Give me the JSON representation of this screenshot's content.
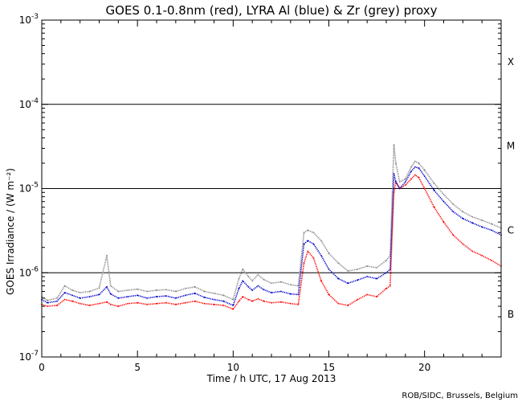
{
  "chart_data": {
    "type": "line",
    "title": "GOES 0.1-0.8nm (red), LYRA Al (blue) & Zr (grey) proxy",
    "xlabel": "Time / h UTC, 17 Aug 2013",
    "ylabel": "GOES Irradiance / (W m⁻²)",
    "xlim": [
      0,
      24
    ],
    "ylim": [
      1e-07,
      0.001
    ],
    "yscale": "log",
    "x_ticks": [
      0,
      5,
      10,
      15,
      20
    ],
    "x_tick_labels": [
      "0",
      "5",
      "10",
      "15",
      "20"
    ],
    "y_ticks": [
      {
        "value": 1e-07,
        "base": "10",
        "exp": "-7"
      },
      {
        "value": 1e-06,
        "base": "10",
        "exp": "-6"
      },
      {
        "value": 1e-05,
        "base": "10",
        "exp": "-5"
      },
      {
        "value": 0.0001,
        "base": "10",
        "exp": "-4"
      },
      {
        "value": 0.001,
        "base": "10",
        "exp": "-3"
      }
    ],
    "threshold_lines": [
      1e-06,
      1e-05,
      0.0001
    ],
    "flare_classes": [
      {
        "label": "B",
        "value": 3.2e-07
      },
      {
        "label": "C",
        "value": 3.2e-06
      },
      {
        "label": "M",
        "value": 3.2e-05
      },
      {
        "label": "X",
        "value": 0.00032
      }
    ],
    "series": [
      {
        "name": "GOES 0.1-0.8nm",
        "color": "#ff0000",
        "x": [
          0.0,
          0.3,
          0.8,
          1.2,
          1.6,
          2.0,
          2.5,
          3.0,
          3.4,
          3.6,
          4.0,
          4.5,
          5.0,
          5.5,
          6.0,
          6.5,
          7.0,
          7.5,
          8.0,
          8.5,
          9.0,
          9.5,
          10.0,
          10.3,
          10.5,
          10.8,
          11.0,
          11.3,
          11.6,
          12.0,
          12.5,
          13.0,
          13.4,
          13.7,
          13.9,
          14.2,
          14.6,
          15.0,
          15.5,
          16.0,
          16.5,
          17.0,
          17.5,
          18.0,
          18.2,
          18.4,
          18.5,
          18.7,
          19.0,
          19.3,
          19.5,
          19.7,
          20.0,
          20.5,
          21.0,
          21.5,
          22.0,
          22.5,
          23.0,
          23.5,
          24.0
        ],
        "values": [
          4.2e-07,
          4e-07,
          4.1e-07,
          4.8e-07,
          4.6e-07,
          4.3e-07,
          4.1e-07,
          4.3e-07,
          4.5e-07,
          4.2e-07,
          4e-07,
          4.3e-07,
          4.4e-07,
          4.2e-07,
          4.3e-07,
          4.4e-07,
          4.2e-07,
          4.4e-07,
          4.6e-07,
          4.3e-07,
          4.2e-07,
          4.1e-07,
          3.7e-07,
          4.6e-07,
          5.2e-07,
          4.8e-07,
          4.6e-07,
          4.9e-07,
          4.6e-07,
          4.4e-07,
          4.5e-07,
          4.3e-07,
          4.2e-07,
          1.3e-06,
          1.8e-06,
          1.5e-06,
          8e-07,
          5.5e-07,
          4.3e-07,
          4.1e-07,
          4.8e-07,
          5.5e-07,
          5.2e-07,
          6.5e-07,
          7e-07,
          9e-06,
          1.2e-05,
          1e-05,
          1.1e-05,
          1.3e-05,
          1.45e-05,
          1.35e-05,
          1e-05,
          6e-06,
          4e-06,
          2.8e-06,
          2.2e-06,
          1.8e-06,
          1.6e-06,
          1.4e-06,
          1.2e-06
        ]
      },
      {
        "name": "LYRA Al proxy",
        "color": "#0000cc",
        "x": [
          0.0,
          0.3,
          0.8,
          1.2,
          1.6,
          2.0,
          2.5,
          3.0,
          3.4,
          3.6,
          4.0,
          4.5,
          5.0,
          5.5,
          6.0,
          6.5,
          7.0,
          7.5,
          8.0,
          8.5,
          9.0,
          9.5,
          10.0,
          10.3,
          10.5,
          10.8,
          11.0,
          11.3,
          11.6,
          12.0,
          12.5,
          13.0,
          13.4,
          13.7,
          13.9,
          14.2,
          14.6,
          15.0,
          15.5,
          16.0,
          16.5,
          17.0,
          17.5,
          18.0,
          18.2,
          18.4,
          18.5,
          18.7,
          19.0,
          19.3,
          19.5,
          19.7,
          20.0,
          20.5,
          21.0,
          21.5,
          22.0,
          22.5,
          23.0,
          23.5,
          24.0
        ],
        "values": [
          4.8e-07,
          4.4e-07,
          4.6e-07,
          5.8e-07,
          5.4e-07,
          5e-07,
          5.2e-07,
          5.5e-07,
          6.8e-07,
          5.6e-07,
          5e-07,
          5.2e-07,
          5.4e-07,
          5e-07,
          5.2e-07,
          5.3e-07,
          5e-07,
          5.4e-07,
          5.7e-07,
          5.1e-07,
          4.8e-07,
          4.6e-07,
          4.1e-07,
          6.5e-07,
          8e-07,
          6.8e-07,
          6.2e-07,
          7e-07,
          6.3e-07,
          5.8e-07,
          6e-07,
          5.6e-07,
          5.5e-07,
          2.2e-06,
          2.4e-06,
          2.2e-06,
          1.6e-06,
          1.1e-06,
          8.5e-07,
          7.5e-07,
          8.2e-07,
          9e-07,
          8.5e-07,
          1e-06,
          1.1e-06,
          1.5e-05,
          1.2e-05,
          1e-05,
          1.2e-05,
          1.6e-05,
          1.8e-05,
          1.75e-05,
          1.4e-05,
          9.5e-06,
          7e-06,
          5.3e-06,
          4.4e-06,
          3.9e-06,
          3.5e-06,
          3.2e-06,
          2.8e-06
        ]
      },
      {
        "name": "LYRA Zr proxy",
        "color": "#888888",
        "x": [
          0.0,
          0.3,
          0.8,
          1.2,
          1.6,
          2.0,
          2.5,
          3.0,
          3.4,
          3.6,
          4.0,
          4.5,
          5.0,
          5.5,
          6.0,
          6.5,
          7.0,
          7.5,
          8.0,
          8.5,
          9.0,
          9.5,
          10.0,
          10.3,
          10.5,
          10.8,
          11.0,
          11.3,
          11.6,
          12.0,
          12.5,
          13.0,
          13.4,
          13.7,
          13.9,
          14.2,
          14.6,
          15.0,
          15.5,
          16.0,
          16.5,
          17.0,
          17.5,
          18.0,
          18.2,
          18.4,
          18.5,
          18.7,
          19.0,
          19.3,
          19.5,
          19.7,
          20.0,
          20.5,
          21.0,
          21.5,
          22.0,
          22.5,
          23.0,
          23.5,
          24.0
        ],
        "values": [
          5.2e-07,
          4.7e-07,
          5e-07,
          7e-07,
          6.2e-07,
          5.8e-07,
          6e-07,
          6.6e-07,
          1.6e-06,
          7e-07,
          6e-07,
          6.2e-07,
          6.4e-07,
          6e-07,
          6.2e-07,
          6.3e-07,
          6e-07,
          6.5e-07,
          6.8e-07,
          6e-07,
          5.7e-07,
          5.4e-07,
          4.8e-07,
          8.5e-07,
          1.1e-06,
          9e-07,
          8e-07,
          9.5e-07,
          8.3e-07,
          7.5e-07,
          7.8e-07,
          7.2e-07,
          7e-07,
          3e-06,
          3.2e-06,
          3e-06,
          2.4e-06,
          1.7e-06,
          1.3e-06,
          1.05e-06,
          1.1e-06,
          1.2e-06,
          1.15e-06,
          1.4e-06,
          1.6e-06,
          3.3e-05,
          2e-05,
          1.2e-05,
          1.3e-05,
          1.8e-05,
          2.1e-05,
          2e-05,
          1.65e-05,
          1.15e-05,
          8.5e-06,
          6.5e-06,
          5.3e-06,
          4.6e-06,
          4.2e-06,
          3.8e-06,
          3.4e-06
        ]
      }
    ],
    "credit": "ROB/SIDC, Brussels, Belgium"
  }
}
